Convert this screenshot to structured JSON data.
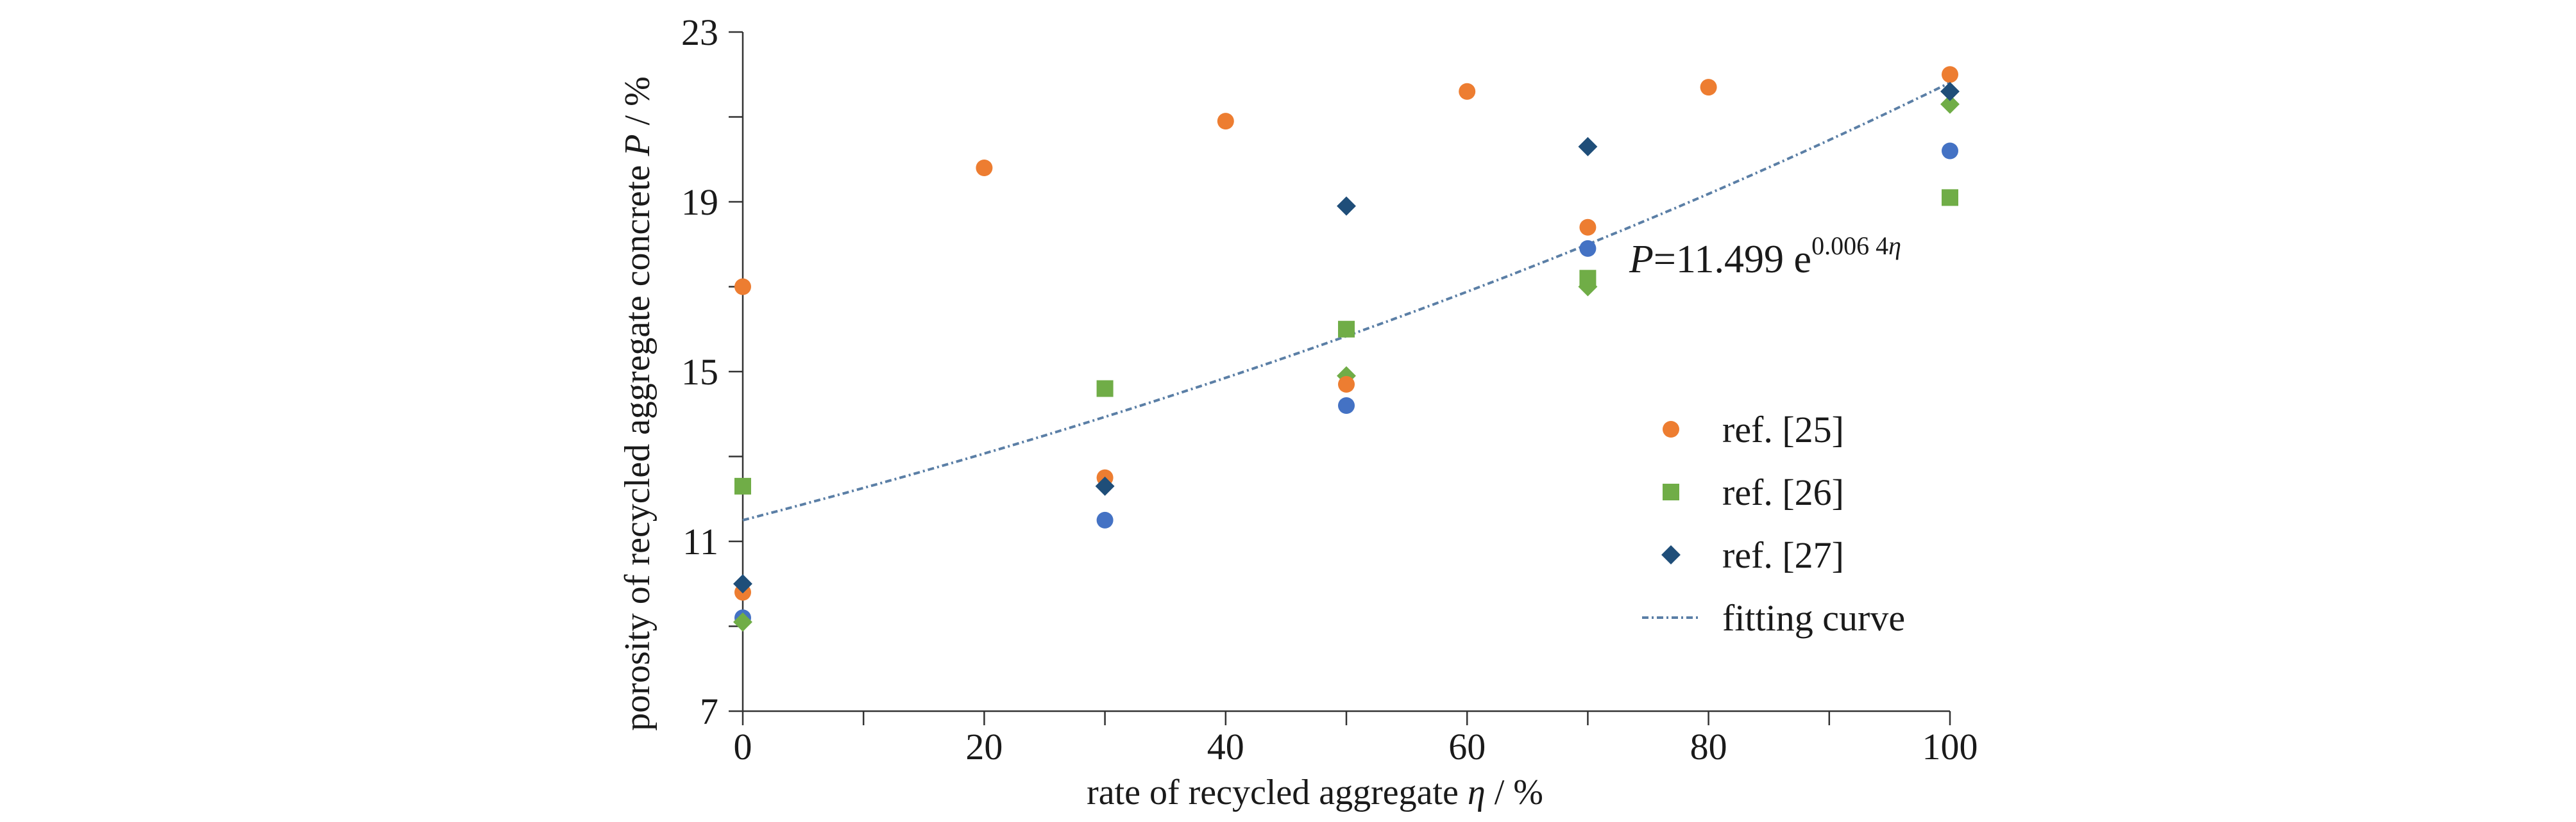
{
  "chart_data": {
    "type": "scatter",
    "title": "",
    "xlabel_main": "rate of recycled aggregate ",
    "xlabel_symbol": "η",
    "xlabel_unit": " / %",
    "ylabel_main": "porosity of recycled aggregate concrete ",
    "ylabel_symbol": "P",
    "ylabel_unit": " / %",
    "xlim": [
      0,
      100
    ],
    "ylim": [
      7,
      23
    ],
    "x_ticks": [
      0,
      20,
      40,
      60,
      80,
      100
    ],
    "y_ticks": [
      7,
      11,
      15,
      19,
      23
    ],
    "grid": false,
    "legend_position": "right",
    "equation": {
      "symbol": "P",
      "text": "=11.499 e",
      "exponent": "0.006 4",
      "exponent_symbol": "η"
    },
    "series": [
      {
        "name": "ref. [25]",
        "marker": "circle",
        "color": "#ED7D31",
        "points": [
          [
            0,
            17.0
          ],
          [
            0,
            9.8
          ],
          [
            20,
            19.8
          ],
          [
            30,
            12.5
          ],
          [
            40,
            20.9
          ],
          [
            50,
            14.7
          ],
          [
            60,
            21.6
          ],
          [
            70,
            18.4
          ],
          [
            80,
            21.7
          ],
          [
            100,
            22.0
          ]
        ]
      },
      {
        "name": "ref. [26]",
        "marker": "square",
        "color": "#70AD47",
        "points": [
          [
            0,
            12.3
          ],
          [
            30,
            14.6
          ],
          [
            50,
            16.0
          ],
          [
            70,
            17.2
          ],
          [
            100,
            19.1
          ]
        ]
      },
      {
        "name": "ref. [27]",
        "marker": "diamond",
        "color": "#1F4E79",
        "points": [
          [
            0,
            10.0
          ],
          [
            30,
            12.3
          ],
          [
            50,
            18.9
          ],
          [
            70,
            20.3
          ],
          [
            100,
            21.6
          ]
        ]
      }
    ],
    "extra_points": [
      {
        "marker": "circle",
        "color": "#4472C4",
        "points": [
          [
            0,
            9.2
          ],
          [
            30,
            11.5
          ],
          [
            50,
            14.2
          ],
          [
            70,
            17.9
          ],
          [
            100,
            20.2
          ]
        ]
      },
      {
        "marker": "diamond",
        "color": "#70AD47",
        "points": [
          [
            0,
            9.1
          ],
          [
            50,
            14.9
          ],
          [
            70,
            17.0
          ],
          [
            100,
            21.3
          ]
        ]
      }
    ],
    "fit_curve": {
      "name": "fitting curve",
      "color": "#5B7FA6",
      "a": 11.499,
      "b": 0.0064
    }
  }
}
